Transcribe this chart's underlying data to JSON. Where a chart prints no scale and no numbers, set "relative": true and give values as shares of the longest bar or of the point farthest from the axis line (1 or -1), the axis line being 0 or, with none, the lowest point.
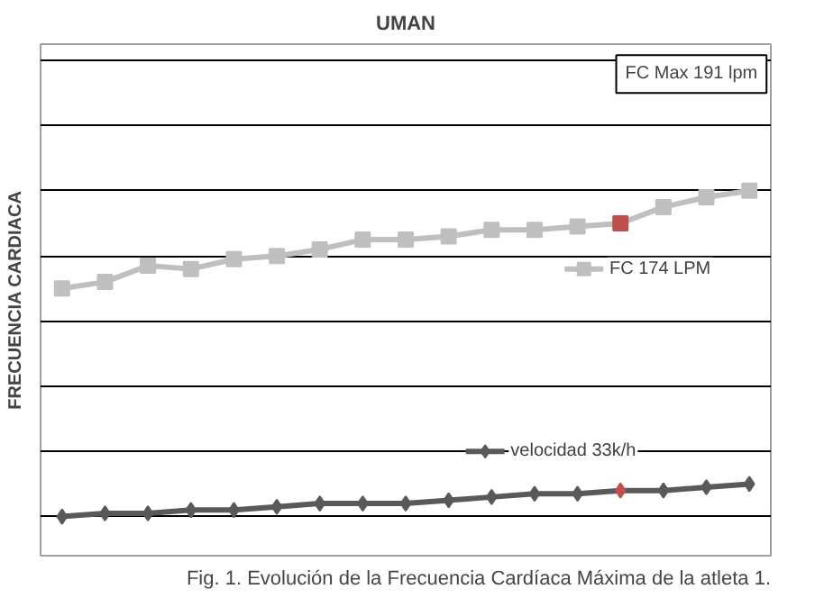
{
  "chart_data": {
    "type": "line",
    "title": "UMAN",
    "ylabel": "FRECUENCIA CARDIACA",
    "relative": true,
    "grid": "y",
    "legend": "right",
    "line_style": "solid",
    "categories": [
      null,
      null,
      null,
      null,
      null,
      null,
      null,
      null,
      null,
      null,
      null,
      null,
      null,
      null,
      null,
      null,
      null
    ],
    "series": [
      {
        "name": "FC 174 LPM",
        "color": "#bfbfbf",
        "marker": "square",
        "colors": [
          "#bfbfbf",
          "#bfbfbf",
          "#bfbfbf",
          "#bfbfbf",
          "#bfbfbf",
          "#bfbfbf",
          "#bfbfbf",
          "#bfbfbf",
          "#bfbfbf",
          "#bfbfbf",
          "#bfbfbf",
          "#bfbfbf",
          "#bfbfbf",
          "#c0504d",
          "#bfbfbf",
          "#bfbfbf",
          "#bfbfbf"
        ],
        "values": [
          0.7,
          0.72,
          0.77,
          0.76,
          0.79,
          0.8,
          0.82,
          0.85,
          0.85,
          0.86,
          0.88,
          0.88,
          0.89,
          0.9,
          0.95,
          0.98,
          1
        ]
      },
      {
        "name": "velocidad 33k/h",
        "color": "#595959",
        "marker": "diamond",
        "colors": [
          "#595959",
          "#595959",
          "#595959",
          "#595959",
          "#595959",
          "#595959",
          "#595959",
          "#595959",
          "#595959",
          "#595959",
          "#595959",
          "#595959",
          "#595959",
          "#c0504d",
          "#595959",
          "#595959",
          "#595959"
        ],
        "values": [
          0,
          0.01,
          0.01,
          0.02,
          0.02,
          0.03,
          0.04,
          0.04,
          0.04,
          0.05,
          0.06,
          0.07,
          0.07,
          0.08,
          0.08,
          0.09,
          0.1
        ]
      }
    ],
    "annotations": [
      "FC Max 191 lpm",
      "Fig. 1. Evolución de la Frecuencia Cardíaca Máxima de la atleta 1."
    ]
  }
}
